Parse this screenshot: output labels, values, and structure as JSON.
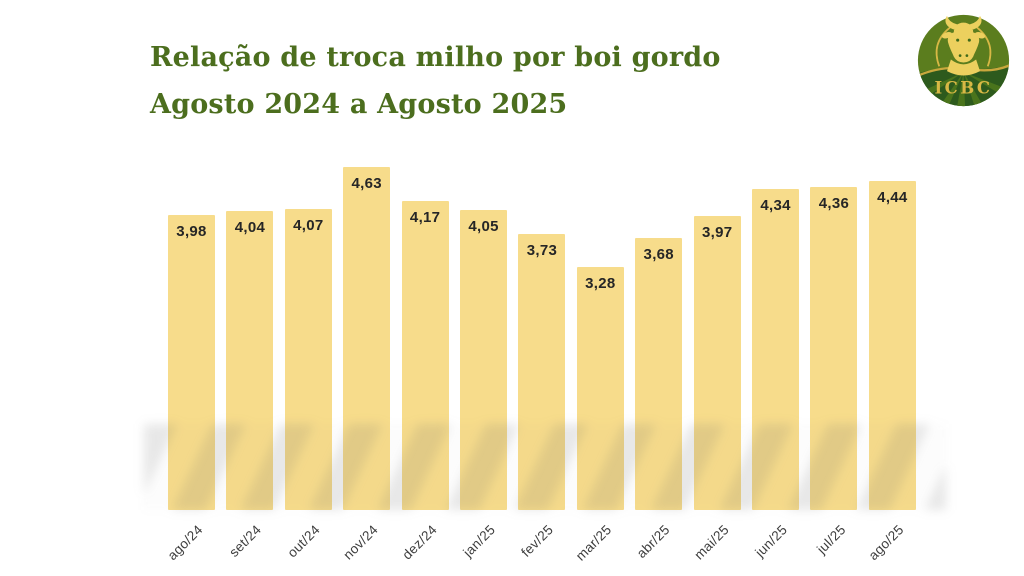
{
  "header": {
    "title_line1": "Relação de troca milho por boi gordo",
    "title_line2": "Agosto 2024 a Agosto 2025",
    "title_color": "#4c6e1e"
  },
  "logo": {
    "text": "ICBC",
    "circle_color": "#5b7d1e",
    "field_dark_color": "#2d5a1d",
    "field_row_color": "#4a741c",
    "gold_color": "#e6c657"
  },
  "chart_data": {
    "type": "bar",
    "title": "Relação de troca milho por boi gordo",
    "subtitle": "Agosto 2024 a Agosto 2025",
    "categories": [
      "ago/24",
      "set/24",
      "out/24",
      "nov/24",
      "dez/24",
      "jan/25",
      "fev/25",
      "mar/25",
      "abr/25",
      "mai/25",
      "jun/25",
      "jul/25",
      "ago/25"
    ],
    "values": [
      3.98,
      4.04,
      4.07,
      4.63,
      4.17,
      4.05,
      3.73,
      3.28,
      3.68,
      3.97,
      4.34,
      4.36,
      4.44
    ],
    "value_labels": [
      "3,98",
      "4,04",
      "4,07",
      "4,63",
      "4,17",
      "4,05",
      "3,73",
      "3,28",
      "3,68",
      "3,97",
      "4,34",
      "4,36",
      "4,44"
    ],
    "bar_color": "#f7dc8b",
    "value_label_color": "#262626",
    "xlabel": "",
    "ylabel": "",
    "ylim": [
      0,
      4.63
    ],
    "grid": false,
    "legend": false,
    "x_tick_rotation_deg": -45
  }
}
